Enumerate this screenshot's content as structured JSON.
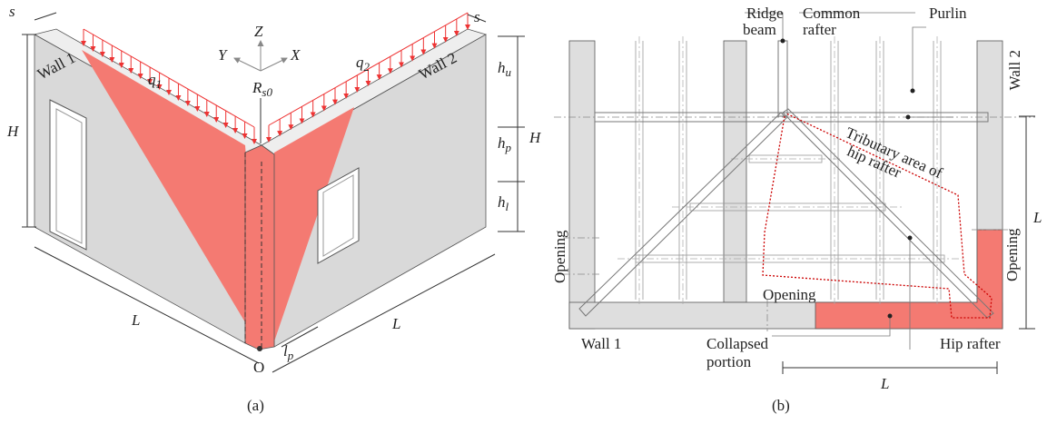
{
  "panel_a": {
    "caption": "(a)",
    "wall_1": "Wall 1",
    "wall_2": "Wall 2",
    "axes": {
      "z": "Z",
      "y": "Y",
      "x": "X"
    },
    "thickness_left": "s",
    "thickness_right": "s",
    "height_left": "H",
    "height_right": "H",
    "q1": {
      "symbol": "q",
      "subscript": "1"
    },
    "q2": {
      "symbol": "q",
      "subscript": "2"
    },
    "reaction": {
      "symbol": "R",
      "subscript": "s0"
    },
    "hu": {
      "symbol": "h",
      "subscript": "u"
    },
    "hp": {
      "symbol": "h",
      "subscript": "p"
    },
    "hl": {
      "symbol": "h",
      "subscript": "l"
    },
    "length_left": "L",
    "length_right": "L",
    "lp": {
      "symbol": "l",
      "subscript": "p"
    },
    "origin": "O"
  },
  "panel_b": {
    "caption": "(b)",
    "ridge_beam": [
      "Ridge",
      "beam"
    ],
    "common_rafter": [
      "Common",
      "rafter"
    ],
    "purlin": "Purlin",
    "wall_2": "Wall 2",
    "tributary_area": [
      "Tributary area of",
      "hip rafter"
    ],
    "length_right": "L",
    "opening_left": "Opening",
    "opening_bottom": "Opening",
    "opening_right": "Opening",
    "wall_1": "Wall 1",
    "collapsed_portion": [
      "Collapsed",
      "portion"
    ],
    "hip_rafter": "Hip rafter",
    "length_bottom": "L"
  }
}
